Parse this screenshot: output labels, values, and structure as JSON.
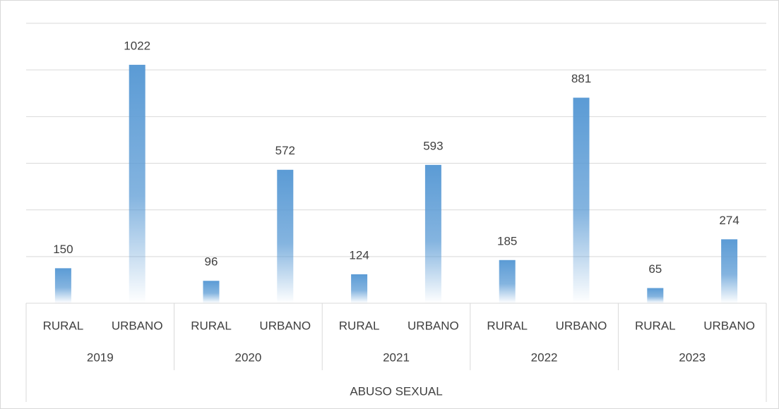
{
  "chart_data": {
    "type": "bar",
    "categories": [
      "RURAL",
      "URBANO",
      "RURAL",
      "URBANO",
      "RURAL",
      "URBANO",
      "RURAL",
      "URBANO",
      "RURAL",
      "URBANO"
    ],
    "groups": [
      "2019",
      "2020",
      "2021",
      "2022",
      "2023"
    ],
    "super_group": "ABUSO SEXUAL",
    "values": [
      150,
      1022,
      96,
      572,
      124,
      593,
      185,
      881,
      65,
      274
    ],
    "color": "#5b9bd5",
    "ylim": [
      0,
      1200
    ],
    "yticks": [
      0,
      200,
      400,
      600,
      800,
      1000,
      1200
    ],
    "grid": true
  }
}
